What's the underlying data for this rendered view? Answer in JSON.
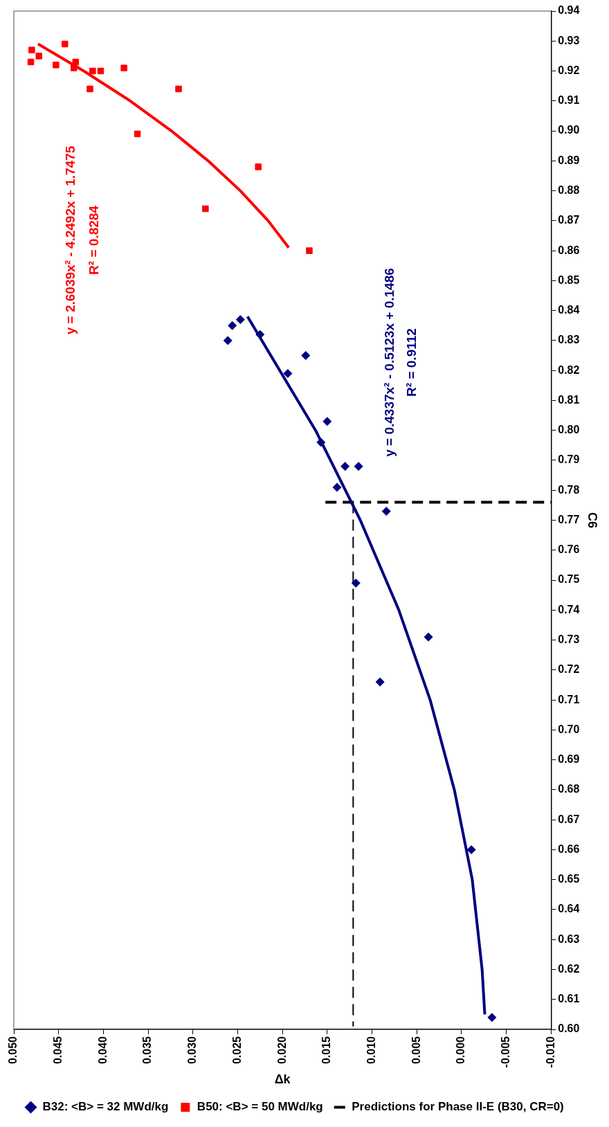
{
  "chart_data": {
    "type": "scatter",
    "xlabel": "Δk",
    "ylabel": "C6",
    "ylim": [
      0.6,
      0.94
    ],
    "yticks": [
      {
        "value": 0.6,
        "label": "0.60"
      },
      {
        "value": 0.61,
        "label": "0.61"
      },
      {
        "value": 0.62,
        "label": "0.62"
      },
      {
        "value": 0.63,
        "label": "0.63"
      },
      {
        "value": 0.64,
        "label": "0.64"
      },
      {
        "value": 0.65,
        "label": "0.65"
      },
      {
        "value": 0.66,
        "label": "0.66"
      },
      {
        "value": 0.67,
        "label": "0.67"
      },
      {
        "value": 0.68,
        "label": "0.68"
      },
      {
        "value": 0.69,
        "label": "0.69"
      },
      {
        "value": 0.7,
        "label": "0.70"
      },
      {
        "value": 0.71,
        "label": "0.71"
      },
      {
        "value": 0.72,
        "label": "0.72"
      },
      {
        "value": 0.73,
        "label": "0.73"
      },
      {
        "value": 0.74,
        "label": "0.74"
      },
      {
        "value": 0.75,
        "label": "0.75"
      },
      {
        "value": 0.76,
        "label": "0.76"
      },
      {
        "value": 0.77,
        "label": "0.77"
      },
      {
        "value": 0.78,
        "label": "0.78"
      },
      {
        "value": 0.79,
        "label": "0.79"
      },
      {
        "value": 0.8,
        "label": "0.80"
      },
      {
        "value": 0.81,
        "label": "0.81"
      },
      {
        "value": 0.82,
        "label": "0.82"
      },
      {
        "value": 0.83,
        "label": "0.83"
      },
      {
        "value": 0.84,
        "label": "0.84"
      },
      {
        "value": 0.85,
        "label": "0.85"
      },
      {
        "value": 0.86,
        "label": "0.86"
      },
      {
        "value": 0.87,
        "label": "0.87"
      },
      {
        "value": 0.88,
        "label": "0.88"
      },
      {
        "value": 0.89,
        "label": "0.89"
      },
      {
        "value": 0.9,
        "label": "0.90"
      },
      {
        "value": 0.91,
        "label": "0.91"
      },
      {
        "value": 0.92,
        "label": "0.92"
      },
      {
        "value": 0.93,
        "label": "0.93"
      },
      {
        "value": 0.94,
        "label": "0.94"
      }
    ],
    "xlim": [
      0.05,
      -0.01
    ],
    "xticks": [
      {
        "value": 0.05,
        "label": "0.050"
      },
      {
        "value": 0.045,
        "label": "0.045"
      },
      {
        "value": 0.04,
        "label": "0.040"
      },
      {
        "value": 0.035,
        "label": "0.035"
      },
      {
        "value": 0.03,
        "label": "0.030"
      },
      {
        "value": 0.025,
        "label": "0.025"
      },
      {
        "value": 0.02,
        "label": "0.020"
      },
      {
        "value": 0.015,
        "label": "0.015"
      },
      {
        "value": 0.01,
        "label": "0.010"
      },
      {
        "value": 0.005,
        "label": "0.005"
      },
      {
        "value": 0,
        "label": "0.000"
      },
      {
        "value": -0.005,
        "label": "-0.005"
      },
      {
        "value": -0.01,
        "label": "-0.010"
      }
    ],
    "grid": false,
    "legend": "bottom left",
    "series": [
      {
        "name": "B32: <B> = 32 MWd/kg",
        "type": "scatter",
        "marker": "diamond",
        "color": "#000080",
        "values": [
          0.83,
          0.835,
          0.837,
          0.832,
          0.825,
          0.819,
          0.803,
          0.796,
          0.788,
          0.788,
          0.781,
          0.773,
          0.749,
          0.731,
          0.716,
          0.66,
          0.604
        ],
        "x": [
          0.0261,
          0.0256,
          0.0247,
          0.0225,
          0.0174,
          0.0194,
          0.015,
          0.0157,
          0.013,
          0.0115,
          0.0139,
          0.0084,
          0.0118,
          0.0037,
          0.0091,
          -0.0011,
          -0.0034
        ]
      },
      {
        "name": "B50: <B> = 50 MWd/kg",
        "type": "scatter",
        "marker": "square",
        "color": "#ff0000",
        "values": [
          0.927,
          0.923,
          0.925,
          0.929,
          0.922,
          0.923,
          0.921,
          0.92,
          0.92,
          0.914,
          0.921,
          0.914,
          0.899,
          0.888,
          0.874,
          0.86
        ],
        "x": [
          0.048,
          0.0481,
          0.0472,
          0.0443,
          0.0453,
          0.0431,
          0.0433,
          0.0412,
          0.0403,
          0.0415,
          0.0377,
          0.0316,
          0.0362,
          0.0227,
          0.0286,
          0.017
        ]
      },
      {
        "type": "line",
        "marker": "none",
        "color": "#000080",
        "values": [
          0.605,
          0.62,
          0.65,
          0.68,
          0.71,
          0.74,
          0.77,
          0.8,
          0.838
        ],
        "x": [
          -0.0026,
          -0.0023,
          -0.0012,
          0.0008,
          0.0035,
          0.007,
          0.0113,
          0.0163,
          0.0239
        ]
      },
      {
        "type": "line",
        "marker": "none",
        "color": "#ff0000",
        "values": [
          0.861,
          0.87,
          0.88,
          0.89,
          0.9,
          0.91,
          0.92,
          0.929
        ],
        "x": [
          0.0193,
          0.0216,
          0.0247,
          0.0283,
          0.0324,
          0.037,
          0.0422,
          0.0473
        ]
      },
      {
        "name": "Predictions for Phase II-E (B30, CR=0)",
        "type": "line",
        "marker": "none",
        "line_style": "dashed",
        "color": "#000000",
        "values": [
          0.776,
          0.776
        ],
        "x": [
          0.0152,
          -0.01
        ]
      },
      {
        "type": "line",
        "marker": "none",
        "line_style": "dashed",
        "color": "#000000",
        "values": [
          0.776,
          0.601
        ],
        "x": [
          0.0121,
          0.0121
        ]
      }
    ],
    "annotations": [
      "y = 2.6039x² - 4.2492x + 1.7475",
      "R² = 0.8284",
      "y = 0.4337x² - 0.5123x + 0.1486",
      "R² = 0.9112"
    ]
  }
}
